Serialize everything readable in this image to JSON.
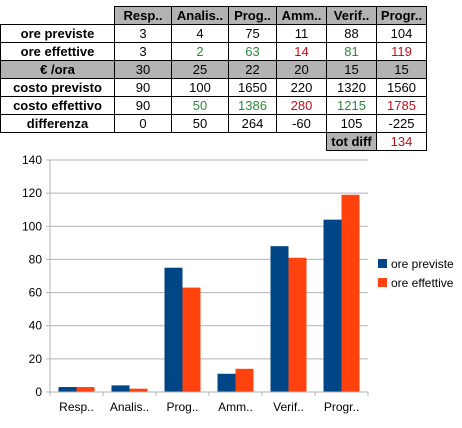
{
  "table": {
    "columns": [
      "Resp..",
      "Analis..",
      "Prog..",
      "Amm..",
      "Verif..",
      "Progr.."
    ],
    "rows": [
      {
        "label": "ore previste",
        "values": [
          "3",
          "4",
          "75",
          "11",
          "88",
          "104"
        ],
        "colors": [
          "",
          "",
          "",
          "",
          "",
          ""
        ],
        "shaded": false
      },
      {
        "label": "ore effettive",
        "values": [
          "3",
          "2",
          "63",
          "14",
          "81",
          "119"
        ],
        "colors": [
          "",
          "green",
          "green",
          "red",
          "green",
          "red"
        ],
        "shaded": false
      },
      {
        "label": "€ /ora",
        "values": [
          "30",
          "25",
          "22",
          "20",
          "15",
          "15"
        ],
        "colors": [
          "",
          "",
          "",
          "",
          "",
          ""
        ],
        "shaded": true
      },
      {
        "label": "costo previsto",
        "values": [
          "90",
          "100",
          "1650",
          "220",
          "1320",
          "1560"
        ],
        "colors": [
          "",
          "",
          "",
          "",
          "",
          ""
        ],
        "shaded": false
      },
      {
        "label": "costo effettivo",
        "values": [
          "90",
          "50",
          "1386",
          "280",
          "1215",
          "1785"
        ],
        "colors": [
          "",
          "green",
          "green",
          "red",
          "green",
          "red"
        ],
        "shaded": false
      },
      {
        "label": "differenza",
        "values": [
          "0",
          "50",
          "264",
          "-60",
          "105",
          "-225"
        ],
        "colors": [
          "",
          "",
          "",
          "",
          "",
          ""
        ],
        "shaded": false
      }
    ],
    "total": {
      "label": "tot diff",
      "value": "134"
    }
  },
  "chart_data": {
    "type": "bar",
    "categories": [
      "Resp..",
      "Analis..",
      "Prog..",
      "Amm..",
      "Verif..",
      "Progr.."
    ],
    "series": [
      {
        "name": "ore previste",
        "color": "#004586",
        "values": [
          3,
          4,
          75,
          11,
          88,
          104
        ]
      },
      {
        "name": "ore effettive",
        "color": "#ff420e",
        "values": [
          3,
          2,
          63,
          14,
          81,
          119
        ]
      }
    ],
    "yticks": [
      0,
      20,
      40,
      60,
      80,
      100,
      120,
      140
    ],
    "ylim": [
      0,
      140
    ],
    "grid": true,
    "legend": "right"
  }
}
